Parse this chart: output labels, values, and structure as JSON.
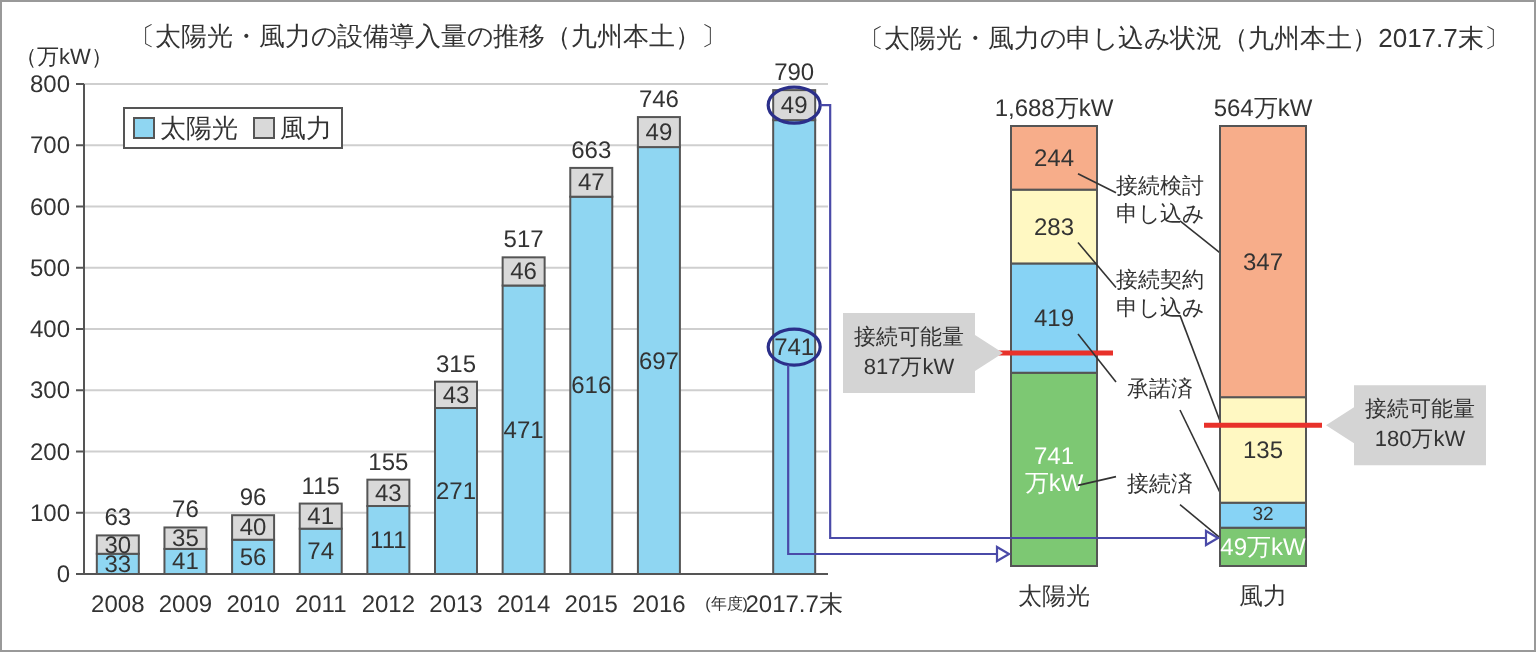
{
  "chart_data": [
    {
      "type": "bar",
      "stacked": true,
      "title": "〔太陽光・風力の設備導入量の推移（九州本土）〕",
      "ylabel": "（万kW）",
      "categories": [
        "2008",
        "2009",
        "2010",
        "2011",
        "2012",
        "2013",
        "2014",
        "2015",
        "2016",
        null,
        "2017.7末"
      ],
      "series": [
        {
          "name": "太陽光",
          "color": "#8fd6f2",
          "values": [
            33,
            41,
            56,
            74,
            111,
            271,
            471,
            616,
            697,
            null,
            741
          ]
        },
        {
          "name": "風力",
          "color": "#d9d9d9",
          "values": [
            30,
            35,
            40,
            41,
            43,
            43,
            46,
            47,
            49,
            null,
            49
          ]
        }
      ],
      "totals": [
        "63",
        "76",
        "96",
        "115",
        "155",
        "315",
        "517",
        "663",
        "746",
        null,
        "790"
      ],
      "ylim": [
        0,
        800
      ],
      "yticks": [
        0,
        100,
        200,
        300,
        400,
        500,
        600,
        700,
        800
      ],
      "grid": "y",
      "legend": "top left",
      "data_labels": true,
      "annotations": [
        "(年度)"
      ]
    },
    {
      "type": "bar",
      "stacked": true,
      "title": "〔太陽光・風力の申し込み状況（九州本土）2017.7末〕",
      "categories": [
        "太陽光"
      ],
      "series": [
        {
          "name": "接続済",
          "color": "#7dc873",
          "values": [
            741
          ],
          "value_labels": [
            "741万kW"
          ]
        },
        {
          "name": "承諾済",
          "color": "#87d3f5",
          "values": [
            419
          ],
          "value_labels": [
            "419"
          ]
        },
        {
          "name": "接続契約申し込み",
          "color": "#fff8c2",
          "values": [
            283
          ],
          "value_labels": [
            "283"
          ]
        },
        {
          "name": "接続検討申し込み",
          "color": "#f7ad8a",
          "values": [
            244
          ],
          "value_labels": [
            "244"
          ]
        }
      ],
      "totals": [
        "1,688万kW"
      ],
      "ref_lines": [
        {
          "axis": "y",
          "value": 817,
          "label": "接続可能量817万kW",
          "color": "#e8312a"
        }
      ]
    },
    {
      "type": "bar",
      "stacked": true,
      "categories": [
        "風力"
      ],
      "series": [
        {
          "color": "#7dc873",
          "values": [
            49
          ],
          "value_labels": [
            "49万kW"
          ]
        },
        {
          "color": "#87d3f5",
          "values": [
            32
          ],
          "value_labels": [
            "32"
          ]
        },
        {
          "color": "#fff8c2",
          "values": [
            135
          ],
          "value_labels": [
            "135"
          ]
        },
        {
          "color": "#f7ad8a",
          "values": [
            347
          ],
          "value_labels": [
            "347"
          ]
        }
      ],
      "totals": [
        "564万kW"
      ],
      "ref_lines": [
        {
          "axis": "y",
          "value": 180,
          "label": "接続可能量180万kW",
          "color": "#e8312a"
        }
      ]
    }
  ]
}
